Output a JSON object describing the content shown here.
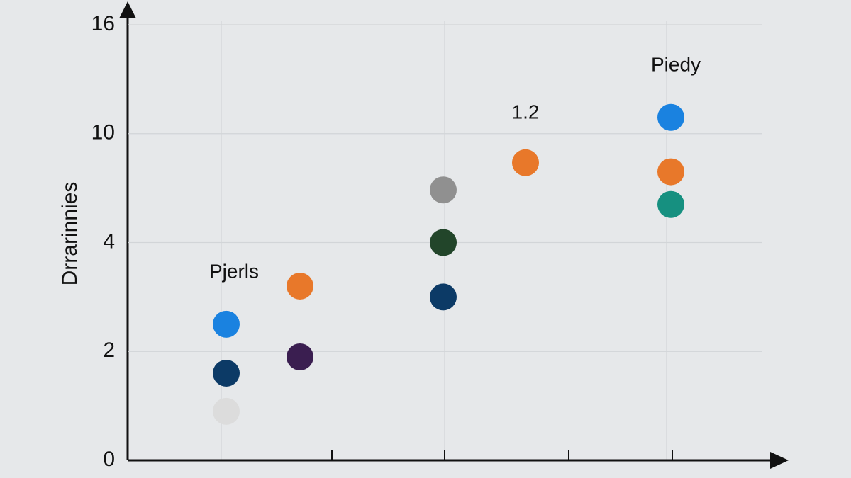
{
  "chart_data": {
    "type": "scatter",
    "y_label": "Drrarinnies",
    "annotations": [
      "Pjerls",
      "1.2",
      "Piedy"
    ],
    "categories": [
      null,
      null,
      null,
      null,
      null
    ],
    "series": [
      {
        "color": "#1a82e0",
        "values": [
          2.5,
          null,
          null,
          null,
          10.9
        ]
      },
      {
        "color": "#0c3a66",
        "values": [
          1.6,
          null,
          3.0,
          null,
          null
        ]
      },
      {
        "color": "#dcdcdc",
        "values": [
          0.9,
          null,
          null,
          null,
          null
        ]
      },
      {
        "color": "#e8782a",
        "values": [
          null,
          3.2,
          null,
          8.4,
          7.9
        ]
      },
      {
        "color": "#3a1e50",
        "values": [
          null,
          1.9,
          null,
          null,
          null
        ]
      },
      {
        "color": "#909090",
        "values": [
          null,
          null,
          6.9,
          null,
          null
        ]
      },
      {
        "color": "#22452a",
        "values": [
          null,
          null,
          4.0,
          null,
          null
        ]
      },
      {
        "color": "#169080",
        "values": [
          null,
          null,
          null,
          null,
          6.1
        ]
      }
    ],
    "ylim": [
      0,
      16
    ],
    "yticks": [
      0,
      2,
      4,
      10,
      16
    ],
    "grid": true
  }
}
